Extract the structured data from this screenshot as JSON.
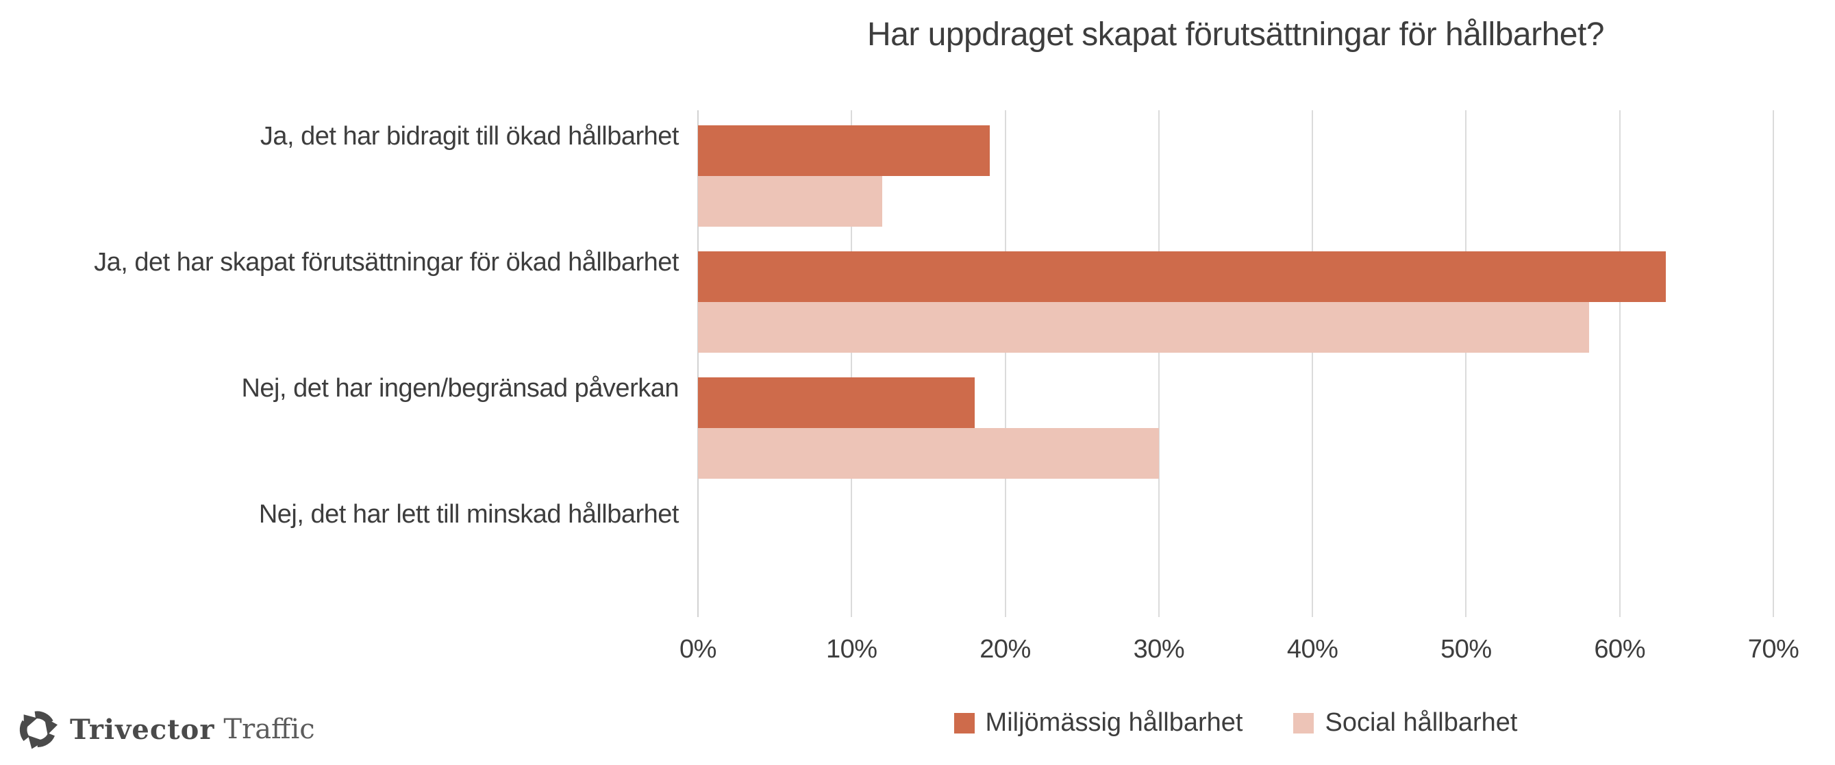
{
  "chart": {
    "title": "Har uppdraget skapat förutsättningar för hållbarhet?"
  },
  "chart_data": {
    "type": "bar",
    "orientation": "horizontal",
    "title": "Har uppdraget skapat förutsättningar för hållbarhet?",
    "categories": [
      "Ja, det har bidragit till ökad hållbarhet",
      "Ja, det har skapat förutsättningar för ökad hållbarhet",
      "Nej, det har ingen/begränsad påverkan",
      "Nej, det har lett till minskad hållbarhet"
    ],
    "series": [
      {
        "name": "Miljömässig hållbarhet",
        "color": "#CE6B4B",
        "values": [
          19,
          63,
          18,
          0
        ]
      },
      {
        "name": "Social hållbarhet",
        "color": "#EDC4B7",
        "values": [
          12,
          58,
          30,
          0
        ]
      }
    ],
    "xlabel": "",
    "ylabel": "",
    "xlim": [
      0,
      70
    ],
    "x_ticks": [
      "0%",
      "10%",
      "20%",
      "30%",
      "40%",
      "50%",
      "60%",
      "70%"
    ],
    "grid": "vertical-only",
    "legend_position": "bottom-center"
  },
  "legend": {
    "items": [
      {
        "label": "Miljömässig hållbarhet",
        "color": "#CE6B4B"
      },
      {
        "label": "Social hållbarhet",
        "color": "#EDC4B7"
      }
    ]
  },
  "logo": {
    "brand": "Trivector",
    "product": "Traffic"
  },
  "colors": {
    "series_dark": "#CE6B4B",
    "series_light": "#EDC4B7",
    "gridline": "#DBDBDB",
    "text": "#3D3D3D",
    "logo_gray": "#4A4A4A"
  }
}
